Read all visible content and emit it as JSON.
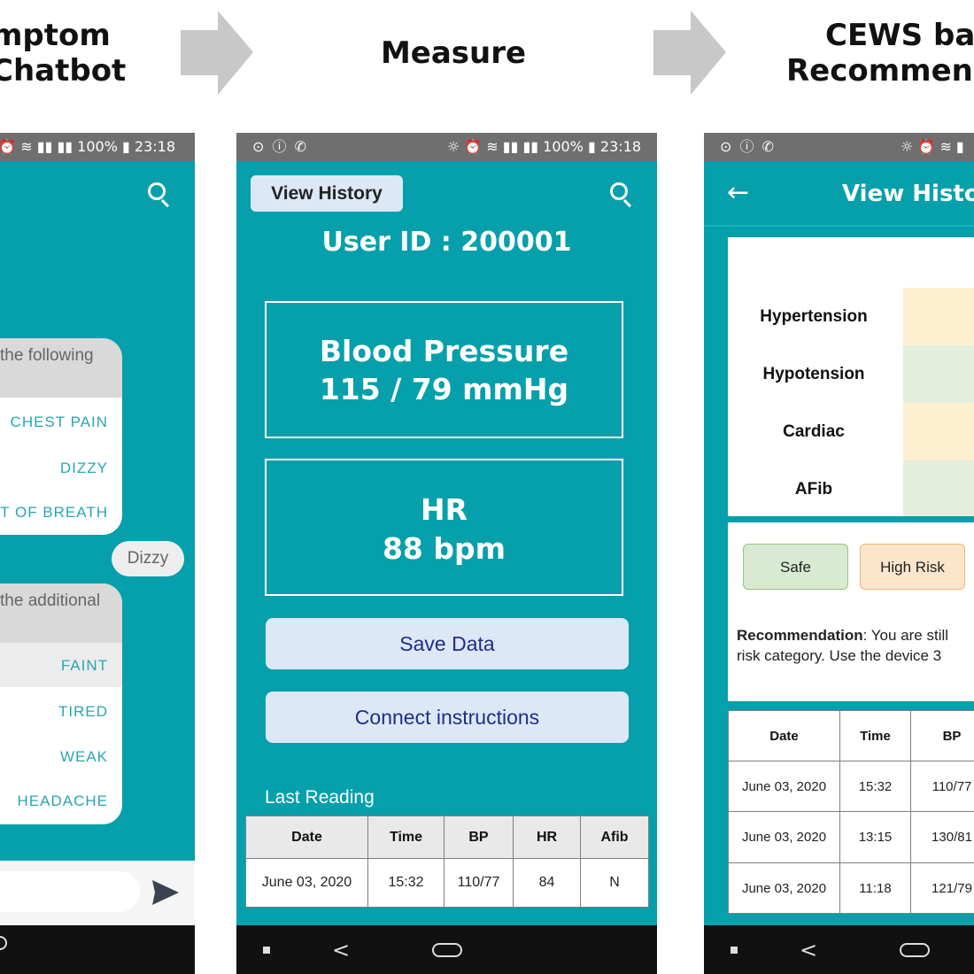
{
  "headings": {
    "chatbot_line1": "mptom",
    "chatbot_line2": "Chatbot",
    "measure": "Measure",
    "cews_line1": "CEWS bas",
    "cews_line2": "Recommend"
  },
  "status_bar": {
    "left_icons": "⊙ ⓘ ✆",
    "right_text_full": "☼ ⏰ ≋ ▮▮ ▮▮ 100% ▮ 23:18",
    "right_text_chat": "⏰ ≋ ▮▮ ▮▮ 100% ▮ 23:18",
    "right_text_cews": "☼ ⏰ ≋ ▮"
  },
  "chatbot": {
    "bubble1": {
      "header": "the following",
      "options": [
        "CHEST PAIN",
        "DIZZY",
        "T OF BREATH"
      ]
    },
    "reply": "Dizzy",
    "bubble2": {
      "header": "the additional",
      "options": [
        "FAINT",
        "TIRED",
        "WEAK",
        "HEADACHE"
      ]
    },
    "send_icon": "send-icon"
  },
  "measure": {
    "view_history": "View History",
    "user_id": "User ID : 200001",
    "bp_label": "Blood Pressure",
    "bp_value": "115 / 79 mmHg",
    "hr_label": "HR",
    "hr_value": "88 bpm",
    "save_button": "Save Data",
    "connect_button": "Connect instructions",
    "last_reading": "Last Reading",
    "table": {
      "headers": [
        "Date",
        "Time",
        "BP",
        "HR",
        "Afib"
      ],
      "rows": [
        [
          "June 03, 2020",
          "15:32",
          "110/77",
          "84",
          "N"
        ]
      ]
    }
  },
  "cews": {
    "title": "View Histor",
    "risk_rows": [
      "Hypertension",
      "Hypotension",
      "Cardiac",
      "AFib"
    ],
    "risk_colors": [
      "#fdf0d1",
      "#e3efdc",
      "#fdf0d1",
      "#e3efdc"
    ],
    "legend": {
      "safe": "Safe",
      "high_risk": "High Risk",
      "safe_color": "#d9ead3",
      "high_risk_color": "#fce5cd"
    },
    "recommendation_label": "Recommendation",
    "recommendation_line1": ": You are still",
    "recommendation_line2": "risk category. Use the device 3",
    "table": {
      "headers": [
        "Date",
        "Time",
        "BP"
      ],
      "rows": [
        [
          "June 03, 2020",
          "15:32",
          "110/77"
        ],
        [
          "June 03, 2020",
          "13:15",
          "130/81"
        ],
        [
          "June 03, 2020",
          "11:18",
          "121/79"
        ]
      ]
    }
  },
  "colors": {
    "teal": "#05a0ab",
    "status_gray": "#6f6f6f",
    "button_blue": "#dde8f7",
    "button_text": "#1f2e88"
  }
}
